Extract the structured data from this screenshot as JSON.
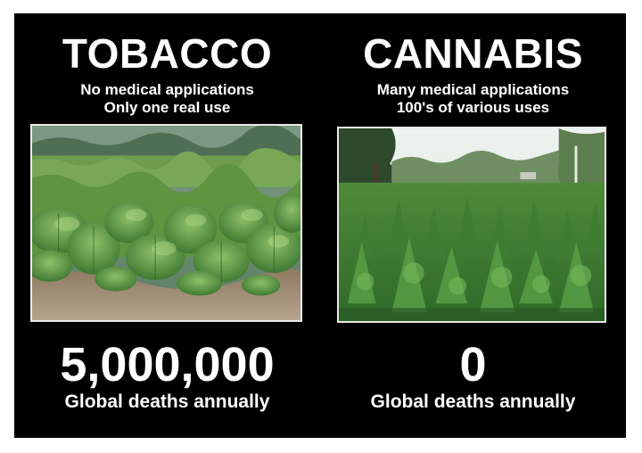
{
  "left": {
    "title": "TOBACCO",
    "subtitle_line1": "No medical applications",
    "subtitle_line2": "Only one real use",
    "stat_value": "5,000,000",
    "stat_label": "Global deaths annually",
    "image_icon": "tobacco-field-photo"
  },
  "right": {
    "title": "CANNABIS",
    "subtitle_line1": "Many medical applications",
    "subtitle_line2": "100's of various uses",
    "stat_value": "0",
    "stat_label": "Global deaths annually",
    "image_icon": "cannabis-field-photo"
  },
  "colors": {
    "background": "#000000",
    "text": "#ffffff",
    "frame": "#e9e9e9"
  }
}
